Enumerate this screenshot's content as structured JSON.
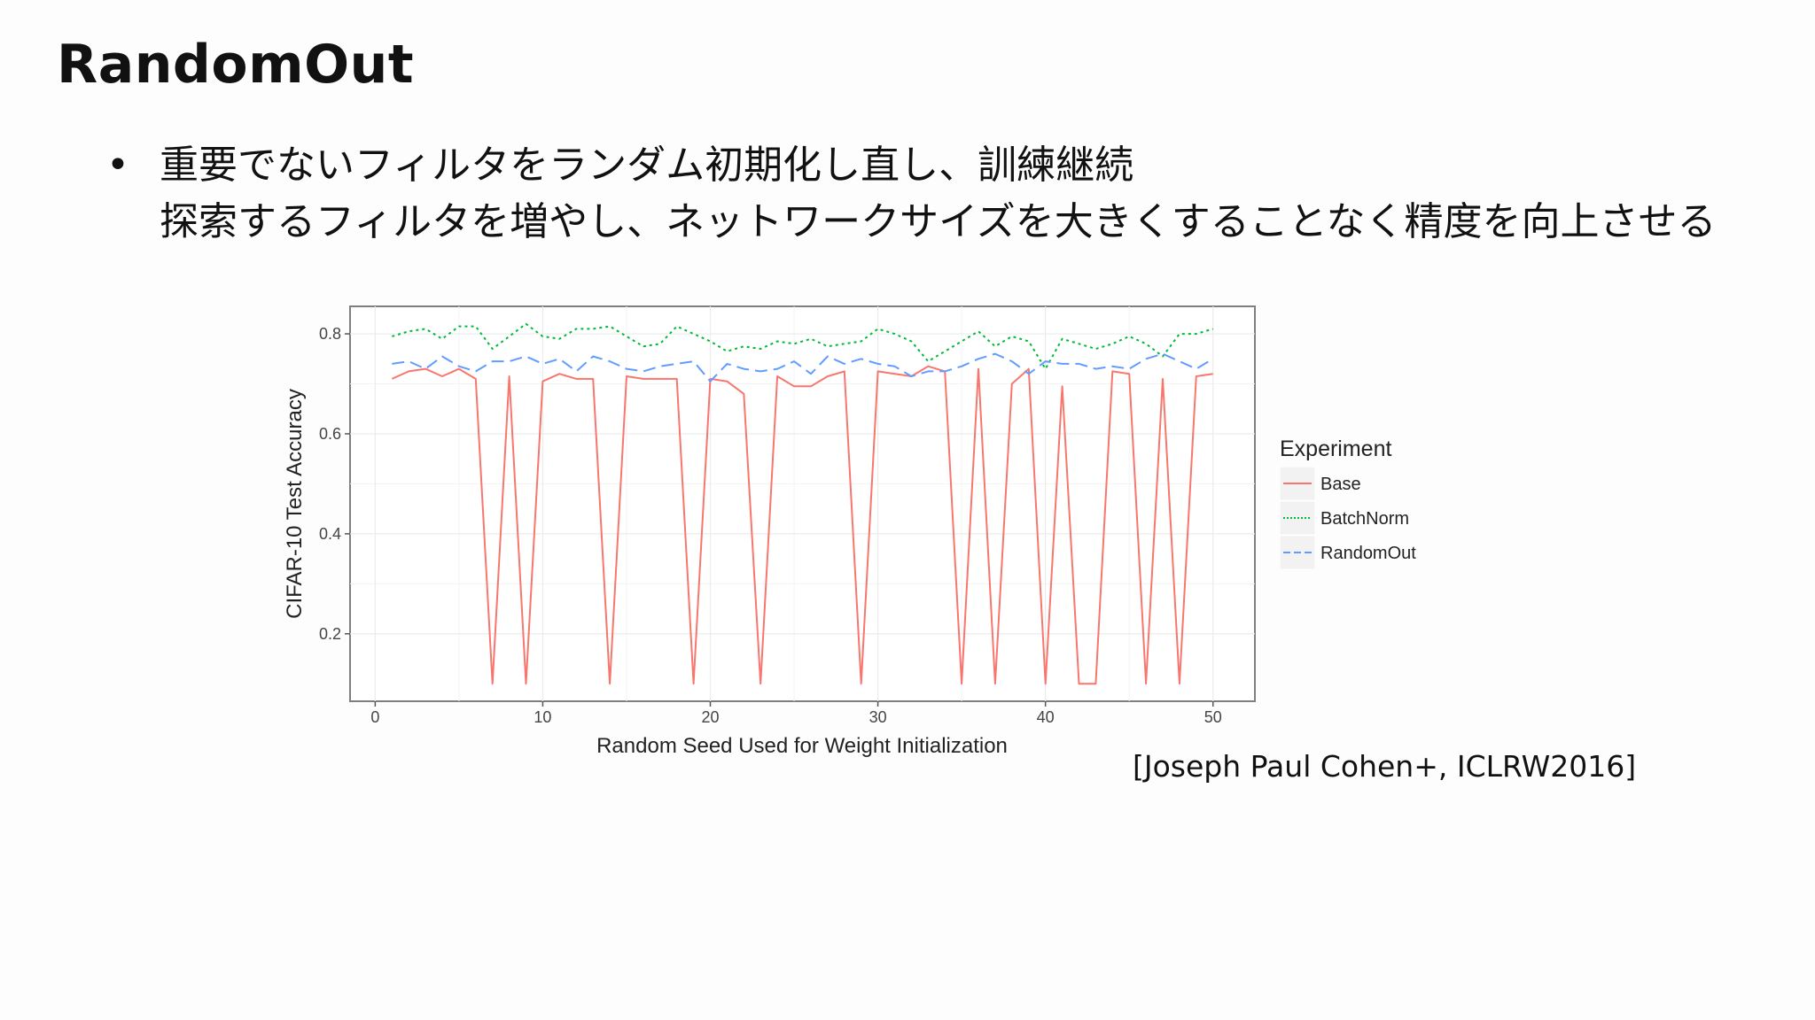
{
  "slide": {
    "title": "RandomOut",
    "bullet_symbol": "•",
    "bullet_lines": [
      "重要でないフィルタをランダム初期化し直し、訓練継続",
      "探索するフィルタを増やし、ネットワークサイズを大きくすることなく精度を向上させる"
    ],
    "citation": "[Joseph Paul Cohen+, ICLRW2016]"
  },
  "chart_data": {
    "type": "line",
    "title": "",
    "xlabel": "Random Seed Used for Weight Initialization",
    "ylabel": "CIFAR-10 Test Accuracy",
    "xlim": [
      -1.5,
      52.5
    ],
    "ylim": [
      0.065,
      0.855
    ],
    "x_ticks": [
      0,
      10,
      20,
      30,
      40,
      50
    ],
    "y_ticks": [
      0.2,
      0.4,
      0.6,
      0.8
    ],
    "x_tick_labels": [
      "0",
      "10",
      "20",
      "30",
      "40",
      "50"
    ],
    "y_tick_labels": [
      "0.2",
      "0.4",
      "0.6",
      "0.8"
    ],
    "grid": true,
    "legend": {
      "title": "Experiment",
      "position": "right"
    },
    "x": [
      1,
      2,
      3,
      4,
      5,
      6,
      7,
      8,
      9,
      10,
      11,
      12,
      13,
      14,
      15,
      16,
      17,
      18,
      19,
      20,
      21,
      22,
      23,
      24,
      25,
      26,
      27,
      28,
      29,
      30,
      31,
      32,
      33,
      34,
      35,
      36,
      37,
      38,
      39,
      40,
      41,
      42,
      43,
      44,
      45,
      46,
      47,
      48,
      49,
      50
    ],
    "series": [
      {
        "name": "Base",
        "color": "#f8766d",
        "dash": "",
        "values": [
          0.71,
          0.725,
          0.73,
          0.715,
          0.73,
          0.71,
          0.1,
          0.715,
          0.1,
          0.705,
          0.72,
          0.71,
          0.71,
          0.1,
          0.715,
          0.71,
          0.71,
          0.71,
          0.1,
          0.71,
          0.705,
          0.68,
          0.1,
          0.715,
          0.695,
          0.695,
          0.715,
          0.725,
          0.1,
          0.725,
          0.72,
          0.715,
          0.735,
          0.725,
          0.1,
          0.73,
          0.1,
          0.7,
          0.73,
          0.1,
          0.695,
          0.1,
          0.1,
          0.725,
          0.72,
          0.1,
          0.71,
          0.1,
          0.715,
          0.72
        ]
      },
      {
        "name": "BatchNorm",
        "color": "#00ba38",
        "dash": "3,4",
        "values": [
          0.795,
          0.805,
          0.81,
          0.79,
          0.815,
          0.815,
          0.77,
          0.795,
          0.82,
          0.795,
          0.79,
          0.81,
          0.81,
          0.815,
          0.795,
          0.775,
          0.78,
          0.815,
          0.8,
          0.785,
          0.765,
          0.775,
          0.77,
          0.785,
          0.78,
          0.79,
          0.775,
          0.78,
          0.785,
          0.81,
          0.8,
          0.785,
          0.745,
          0.765,
          0.785,
          0.805,
          0.775,
          0.795,
          0.785,
          0.73,
          0.79,
          0.78,
          0.77,
          0.78,
          0.795,
          0.78,
          0.755,
          0.8,
          0.8,
          0.81
        ]
      },
      {
        "name": "RandomOut",
        "color": "#619cff",
        "dash": "14,7",
        "values": [
          0.74,
          0.745,
          0.73,
          0.755,
          0.735,
          0.725,
          0.745,
          0.745,
          0.755,
          0.74,
          0.75,
          0.725,
          0.755,
          0.745,
          0.73,
          0.725,
          0.735,
          0.74,
          0.745,
          0.705,
          0.74,
          0.73,
          0.725,
          0.73,
          0.745,
          0.72,
          0.755,
          0.74,
          0.75,
          0.74,
          0.735,
          0.715,
          0.725,
          0.725,
          0.735,
          0.75,
          0.76,
          0.745,
          0.72,
          0.745,
          0.74,
          0.74,
          0.73,
          0.735,
          0.73,
          0.75,
          0.76,
          0.745,
          0.73,
          0.75
        ]
      }
    ]
  }
}
